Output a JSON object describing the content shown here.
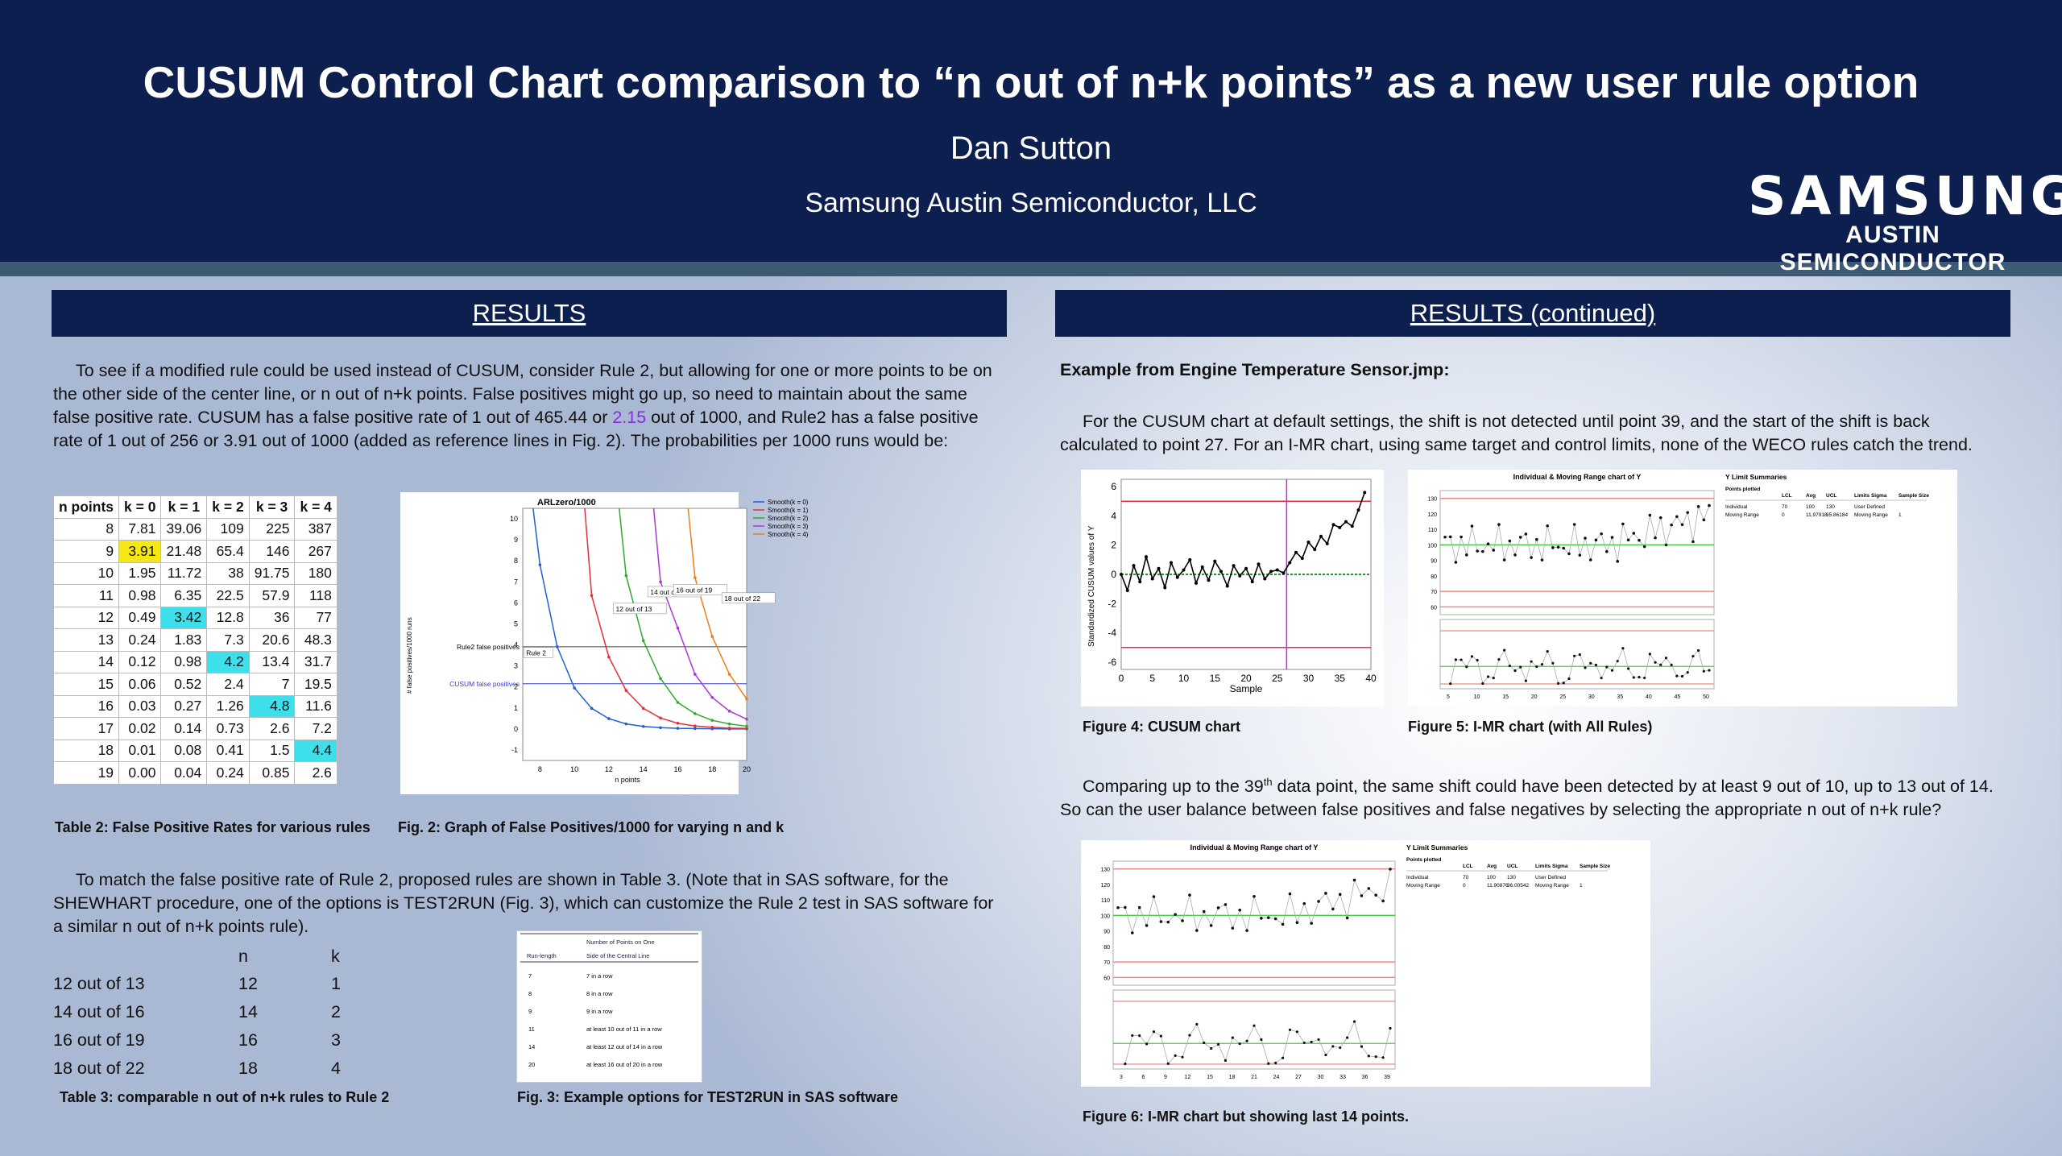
{
  "header": {
    "title": "CUSUM Control Chart comparison to “n out of n+k points” as a new user rule option",
    "author": "Dan Sutton",
    "affiliation": "Samsung Austin Semiconductor, LLC",
    "logo_main": "SAMSUNG",
    "logo_sub": "AUSTIN SEMICONDUCTOR"
  },
  "left": {
    "heading": "RESULTS",
    "intro_before": "To see if a modified rule could be used instead of CUSUM, consider Rule 2, but allowing for one or more points to be on the other side of the center line, or n out of n+k points. False positives might go up, so need to maintain about the same false positive rate. CUSUM has a false positive rate of 1 out of 465.44 or ",
    "intro_highlight": "2.15",
    "intro_after": " out of 1000, and Rule2 has a false positive rate of 1 out of 256 or 3.91 out of 1000 (added as reference lines in Fig. 2). The probabilities per 1000 runs would be:",
    "table2": {
      "headers": [
        "n points",
        "k = 0",
        "k = 1",
        "k = 2",
        "k = 3",
        "k = 4"
      ],
      "rows": [
        [
          "8",
          "7.81",
          "39.06",
          "109",
          "225",
          "387"
        ],
        [
          "9",
          "3.91",
          "21.48",
          "65.4",
          "146",
          "267"
        ],
        [
          "10",
          "1.95",
          "11.72",
          "38",
          "91.75",
          "180"
        ],
        [
          "11",
          "0.98",
          "6.35",
          "22.5",
          "57.9",
          "118"
        ],
        [
          "12",
          "0.49",
          "3.42",
          "12.8",
          "36",
          "77"
        ],
        [
          "13",
          "0.24",
          "1.83",
          "7.3",
          "20.6",
          "48.3"
        ],
        [
          "14",
          "0.12",
          "0.98",
          "4.2",
          "13.4",
          "31.7"
        ],
        [
          "15",
          "0.06",
          "0.52",
          "2.4",
          "7",
          "19.5"
        ],
        [
          "16",
          "0.03",
          "0.27",
          "1.26",
          "4.8",
          "11.6"
        ],
        [
          "17",
          "0.02",
          "0.14",
          "0.73",
          "2.6",
          "7.2"
        ],
        [
          "18",
          "0.01",
          "0.08",
          "0.41",
          "1.5",
          "4.4"
        ],
        [
          "19",
          "0.00",
          "0.04",
          "0.24",
          "0.85",
          "2.6"
        ]
      ],
      "highlight_yellow": [
        [
          1,
          1
        ]
      ],
      "highlight_cyan": [
        [
          4,
          2
        ],
        [
          6,
          3
        ],
        [
          8,
          4
        ],
        [
          10,
          5
        ]
      ],
      "caption": "Table 2: False Positive Rates for various rules"
    },
    "fig2": {
      "title": "ARLzero/1000",
      "ylabel": "# false positives/1000 runs",
      "xlabel": "n points",
      "xticks": [
        "8",
        "10",
        "12",
        "14",
        "16",
        "18",
        "20"
      ],
      "yticks": [
        "10",
        "9",
        "8",
        "7",
        "6",
        "5",
        "4",
        "3",
        "2",
        "1",
        "0",
        "-1"
      ],
      "legend": [
        "Smooth(k = 0)",
        "Smooth(k = 1)",
        "Smooth(k = 2)",
        "Smooth(k = 3)",
        "Smooth(k = 4)"
      ],
      "colors": [
        "#1f5fd6",
        "#e0303a",
        "#2eaa2e",
        "#a63ad8",
        "#f07d1a"
      ],
      "ref_rule2": "Rule2 false positives",
      "ref_cusum": "CUSUM false positives",
      "labels": [
        "12 out of 13",
        "14 out of 16",
        "16 out of 19",
        "18 out of 22",
        "Rule 2"
      ],
      "caption": "Fig. 2: Graph of False Positives/1000 for varying n and k"
    },
    "para2": "To match the false positive rate of Rule 2, proposed rules are shown in Table 3. (Note that in SAS software, for the SHEWHART procedure, one of the options is TEST2RUN (Fig. 3), which can customize the Rule 2 test in SAS software for a similar n out of n+k points rule).",
    "table3": {
      "col_n": "n",
      "col_k": "k",
      "rows": [
        [
          "12 out of 13",
          "12",
          "1"
        ],
        [
          "14 out of 16",
          "14",
          "2"
        ],
        [
          "16 out of 19",
          "16",
          "3"
        ],
        [
          "18 out of 22",
          "18",
          "4"
        ]
      ],
      "caption": "Table 3: comparable n out of n+k rules to Rule 2"
    },
    "fig3": {
      "header_col1": "Run-length",
      "header_col2a": "Number of Points on One",
      "header_col2b": "Side of the Central Line",
      "rows": [
        [
          "7",
          "7 in a row"
        ],
        [
          "8",
          "8 in a row"
        ],
        [
          "9",
          "9 in a row"
        ],
        [
          "11",
          "at least 10 out of 11 in a row"
        ],
        [
          "14",
          "at least 12 out of 14 in a row"
        ],
        [
          "20",
          "at least 16 out of 20 in a row"
        ]
      ],
      "caption": "Fig. 3: Example options for TEST2RUN in SAS software"
    }
  },
  "right": {
    "heading": "RESULTS (continued)",
    "example_title": "Example from Engine Temperature Sensor.jmp:",
    "para1": "For the CUSUM chart at default settings, the shift is not detected until point 39, and the start of the shift is back calculated to point 27. For an I-MR chart, using same target and control limits, none of the WECO rules catch the trend.",
    "fig4": {
      "ylabel": "Standardized CUSUM values of Y",
      "xlabel": "Sample",
      "xticks": [
        "0",
        "5",
        "10",
        "15",
        "20",
        "25",
        "30",
        "35",
        "40"
      ],
      "yticks": [
        "6",
        "4",
        "2",
        "0",
        "-2",
        "-4",
        "-6"
      ],
      "values": [
        0,
        -1.1,
        0.6,
        -0.5,
        1.2,
        -0.3,
        0.4,
        -0.9,
        0.8,
        -0.2,
        0.3,
        1.0,
        -0.6,
        0.5,
        -0.4,
        0.9,
        0.2,
        -0.8,
        0.6,
        -0.1,
        0.4,
        -0.5,
        0.7,
        -0.3,
        0.2,
        0.3,
        0.1,
        0.8,
        1.5,
        1.1,
        2.2,
        1.7,
        2.6,
        2.1,
        3.4,
        3.2,
        3.6,
        3.3,
        4.4,
        5.6
      ],
      "caption": "Figure 4: CUSUM chart"
    },
    "fig5": {
      "title": "Individual & Moving Range chart of Y",
      "summary_title": "Y Limit Summaries",
      "summary_headers": [
        "Points plotted",
        "LCL",
        "Avg",
        "UCL",
        "Limits Sigma",
        "Sample Size"
      ],
      "summary_rows": [
        [
          "Individual",
          "70",
          "100",
          "130",
          "User Defined",
          ""
        ],
        [
          "Moving Range",
          "0",
          "11.97918",
          "35.86184",
          "Moving Range",
          "1"
        ]
      ],
      "yticks": [
        "130",
        "120",
        "110",
        "100",
        "90",
        "80",
        "70",
        "60"
      ],
      "xticks": [
        "5",
        "10",
        "15",
        "20",
        "25",
        "30",
        "35",
        "40",
        "45",
        "50"
      ],
      "caption": "Figure 5: I-MR chart (with All Rules)"
    },
    "para2_before": "Comparing up to the 39",
    "para2_sup": "th",
    "para2_after": " data point, the same shift could have been detected by at least 9 out of 10, up to 13 out of 14. So can the user balance between false positives and false negatives by selecting the appropriate n out of n+k rule?",
    "fig6": {
      "title": "Individual & Moving Range chart of Y",
      "summary_title": "Y Limit Summaries",
      "summary_headers": [
        "Points plotted",
        "LCL",
        "Avg",
        "UCL",
        "Limits Sigma",
        "Sample Size"
      ],
      "summary_rows": [
        [
          "Individual",
          "70",
          "100",
          "130",
          "User Defined",
          ""
        ],
        [
          "Moving Range",
          "0",
          "11.90876",
          "36.00542",
          "Moving Range",
          "1"
        ]
      ],
      "yticks": [
        "130",
        "120",
        "110",
        "100",
        "90",
        "80",
        "70",
        "60"
      ],
      "xticks": [
        "3",
        "6",
        "9",
        "12",
        "15",
        "18",
        "21",
        "24",
        "27",
        "30",
        "33",
        "36",
        "39"
      ],
      "caption": "Figure 6: I-MR chart but showing last 14 points."
    }
  }
}
